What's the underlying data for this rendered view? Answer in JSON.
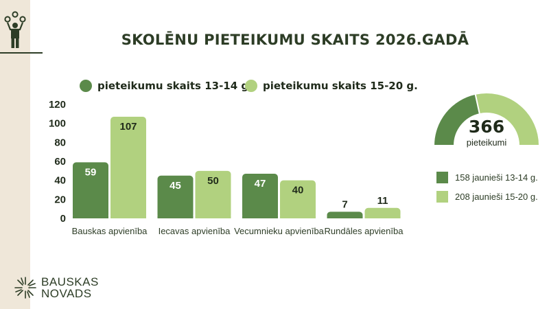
{
  "title": "SKOLĒNU PIETEIKUMU SKAITS 2026.GADĀ",
  "colors": {
    "dark": "#5b8a4a",
    "light": "#b1d17f",
    "text": "#2d3d26",
    "sidebar": "#efe7d9"
  },
  "chart_data": {
    "type": "bar",
    "categories": [
      "Bauskas apvienība",
      "Iecavas apvienība",
      "Vecumnieku apvienība",
      "Rundāles apvienība"
    ],
    "series": [
      {
        "name": "pieteikumu skaits 13-14 g.",
        "values": [
          59,
          45,
          47,
          7
        ],
        "color": "#5b8a4a"
      },
      {
        "name": "pieteikumu skaits 15-20 g.",
        "values": [
          107,
          50,
          40,
          11
        ],
        "color": "#b1d17f"
      }
    ],
    "yticks": [
      0,
      20,
      40,
      60,
      80,
      100,
      120
    ],
    "ylim": [
      0,
      120
    ],
    "grid": false,
    "legend_position": "top"
  },
  "kpi": {
    "total": "366",
    "label": "pieteikumi",
    "segments": [
      {
        "value": 158,
        "text": "158 jaunieši 13-14 g.",
        "color": "#5b8a4a"
      },
      {
        "value": 208,
        "text": "208 jaunieši 15-20 g.",
        "color": "#b1d17f"
      }
    ]
  },
  "logo": {
    "line1": "BAUSKAS",
    "line2": "NOVADS",
    "icon": "sunburst-logo-icon"
  },
  "top_icon": "juggler-icon"
}
